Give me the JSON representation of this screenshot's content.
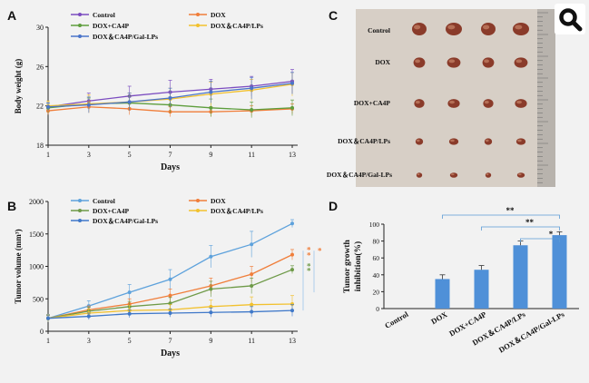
{
  "panel_letters": [
    "A",
    "B",
    "C",
    "D"
  ],
  "icons": {
    "zoom": "magnifier-icon"
  },
  "chart_data": [
    {
      "panel": "A",
      "type": "line",
      "xlabel": "Days",
      "ylabel": "Body weight (g)",
      "x": [
        1,
        3,
        5,
        7,
        9,
        11,
        13
      ],
      "xticks": [
        "1",
        "3",
        "5",
        "7",
        "9",
        "11",
        "13"
      ],
      "yticks": [
        "18",
        "22",
        "26",
        "30"
      ],
      "ylim": [
        18,
        30
      ],
      "legend_position": "top",
      "series": [
        {
          "name": "Control",
          "color": "#7b4cc0",
          "values": [
            21.9,
            22.5,
            23.0,
            23.4,
            23.7,
            24.0,
            24.5
          ],
          "err": [
            0.4,
            0.8,
            1.0,
            1.2,
            1.0,
            1.0,
            1.2
          ]
        },
        {
          "name": "DOX",
          "color": "#f07e3a",
          "values": [
            21.5,
            21.9,
            21.7,
            21.4,
            21.4,
            21.5,
            21.7
          ],
          "err": [
            0.4,
            0.6,
            0.6,
            0.5,
            0.5,
            0.5,
            0.5
          ]
        },
        {
          "name": "DOX+CA4P",
          "color": "#5e9e3d",
          "values": [
            21.8,
            22.2,
            22.3,
            22.1,
            21.8,
            21.6,
            21.8
          ],
          "err": [
            0.5,
            0.6,
            0.7,
            0.8,
            0.9,
            0.8,
            0.8
          ]
        },
        {
          "name": "DOX＆CA4P/LPs",
          "color": "#f2c12e",
          "values": [
            22.0,
            22.2,
            22.4,
            22.7,
            23.2,
            23.6,
            24.2
          ],
          "err": [
            0.5,
            0.9,
            0.9,
            1.1,
            1.2,
            1.1,
            1.2
          ]
        },
        {
          "name": "DOX＆CA4P/Gal-LPs",
          "color": "#4a74c9",
          "values": [
            21.9,
            22.1,
            22.4,
            22.8,
            23.4,
            23.8,
            24.3
          ],
          "err": [
            0.4,
            0.8,
            0.9,
            1.0,
            1.1,
            1.1,
            1.1
          ]
        }
      ]
    },
    {
      "panel": "B",
      "type": "line",
      "xlabel": "Days",
      "ylabel": "Tumor volume (mm³)",
      "x": [
        1,
        3,
        5,
        7,
        9,
        11,
        13
      ],
      "xticks": [
        "1",
        "3",
        "5",
        "7",
        "9",
        "11",
        "13"
      ],
      "yticks": [
        "0",
        "500",
        "1000",
        "1500",
        "2000"
      ],
      "ylim": [
        0,
        2000
      ],
      "legend_position": "top",
      "significance_marks": [
        "*",
        "*",
        "*",
        "*"
      ],
      "series": [
        {
          "name": "Control",
          "color": "#5ea2dc",
          "values": [
            200,
            390,
            600,
            800,
            1150,
            1340,
            1660
          ],
          "err": [
            60,
            80,
            120,
            150,
            170,
            200,
            60
          ]
        },
        {
          "name": "DOX",
          "color": "#f07e3a",
          "values": [
            200,
            330,
            420,
            550,
            700,
            880,
            1180
          ],
          "err": [
            50,
            60,
            80,
            100,
            120,
            120,
            80
          ]
        },
        {
          "name": "DOX+CA4P",
          "color": "#6e9a48",
          "values": [
            200,
            310,
            380,
            430,
            650,
            700,
            950
          ],
          "err": [
            50,
            60,
            80,
            90,
            120,
            120,
            60
          ]
        },
        {
          "name": "DOX＆CA4P/LPs",
          "color": "#f2c12e",
          "values": [
            200,
            280,
            320,
            330,
            380,
            410,
            420
          ],
          "err": [
            50,
            60,
            80,
            80,
            100,
            120,
            130
          ]
        },
        {
          "name": "DOX＆CA4P/Gal-LPs",
          "color": "#3f78c9",
          "values": [
            200,
            230,
            270,
            280,
            290,
            300,
            320
          ],
          "err": [
            40,
            50,
            60,
            60,
            70,
            80,
            90
          ]
        }
      ]
    },
    {
      "panel": "D",
      "type": "bar",
      "ylabel": "Tumor growth inhibition(%)",
      "categories": [
        "Control",
        "DOX",
        "DOX+CA4P",
        "DOX＆CA4P/LPs",
        "DOX＆CA4P/Gal-LPs"
      ],
      "values": [
        0,
        35,
        46,
        75,
        87
      ],
      "err": [
        0,
        5,
        5,
        5,
        4
      ],
      "yticks": [
        "0",
        "20",
        "40",
        "60",
        "80",
        "100"
      ],
      "ylim": [
        0,
        100
      ],
      "color": "#4f90d8",
      "significance": [
        {
          "from": 1,
          "to": 4,
          "label": "**"
        },
        {
          "from": 2,
          "to": 4,
          "label": "**"
        },
        {
          "from": 3,
          "to": 4,
          "label": "*"
        }
      ]
    }
  ],
  "photo_panel": {
    "row_labels": [
      "Control",
      "DOX",
      "DOX+CA4P",
      "DOX＆CA4P/LPs",
      "DOX＆CA4P/Gal-LPs"
    ],
    "tumor_scale": [
      1.0,
      0.8,
      0.7,
      0.52,
      0.4
    ]
  }
}
